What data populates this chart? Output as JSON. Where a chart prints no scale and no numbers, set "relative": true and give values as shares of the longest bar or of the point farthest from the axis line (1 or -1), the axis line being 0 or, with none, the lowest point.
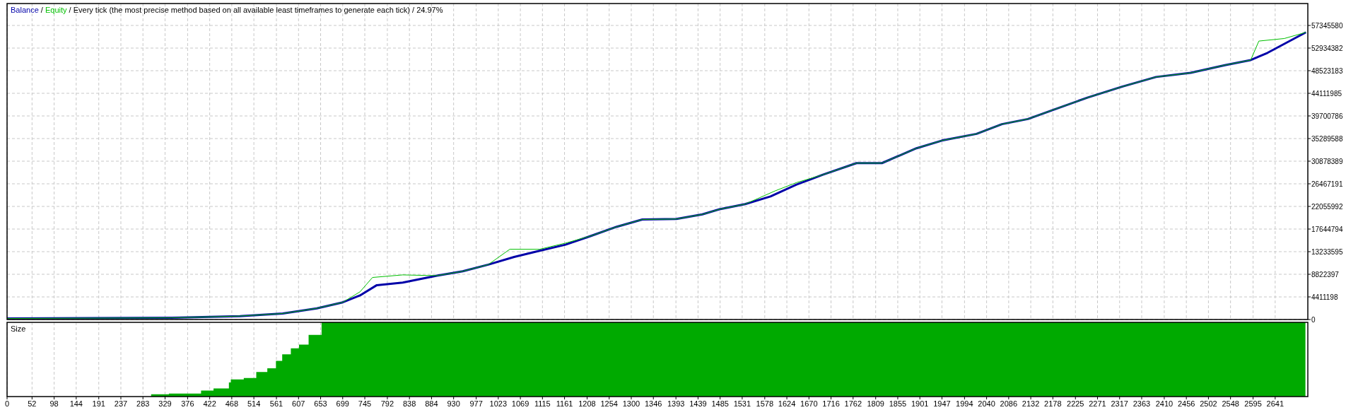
{
  "chart_data": [
    {
      "type": "line",
      "title": "Every tick (the most precise method based on all available least timeframes to generate each tick) / 24.97%",
      "annotations": [
        "/",
        "/"
      ],
      "legend": "top left",
      "grid": true,
      "tick_labels": "y",
      "xlim": [
        0,
        2709
      ],
      "ylim": [
        0,
        61620000
      ],
      "yticks": [
        0,
        4411198,
        8822397,
        13233595,
        17644794,
        22055992,
        26467191,
        30878389,
        35289588,
        39700786,
        44111985,
        48523183,
        52934382,
        57345580
      ],
      "series": [
        {
          "name": "Balance",
          "color": "#0000a8",
          "x": [
            0,
            342,
            485,
            574,
            645,
            699,
            735,
            770,
            824,
            895,
            949,
            1002,
            1056,
            1109,
            1163,
            1216,
            1270,
            1323,
            1394,
            1448,
            1484,
            1537,
            1590,
            1644,
            1698,
            1769,
            1822,
            1894,
            1947,
            2019,
            2072,
            2126,
            2179,
            2251,
            2322,
            2393,
            2465,
            2536,
            2590,
            2625,
            2705
          ],
          "values": [
            200000,
            335000,
            670000,
            1170000,
            2180000,
            3350000,
            4700000,
            6700000,
            7200000,
            8550000,
            9400000,
            10700000,
            12200000,
            13400000,
            14600000,
            16300000,
            18100000,
            19500000,
            19600000,
            20500000,
            21500000,
            22500000,
            24000000,
            26300000,
            28200000,
            30500000,
            30500000,
            33400000,
            34900000,
            36200000,
            38100000,
            39100000,
            40900000,
            43300000,
            45400000,
            47300000,
            48100000,
            49600000,
            50600000,
            52000000,
            56000000
          ]
        },
        {
          "name": "Equity",
          "color": "#00c000",
          "x": [
            0,
            342,
            485,
            574,
            645,
            699,
            735,
            761,
            824,
            895,
            949,
            1002,
            1047,
            1109,
            1163,
            1216,
            1270,
            1323,
            1394,
            1448,
            1484,
            1537,
            1600,
            1644,
            1698,
            1769,
            1822,
            1894,
            1947,
            2019,
            2072,
            2126,
            2179,
            2251,
            2322,
            2393,
            2465,
            2536,
            2590,
            2607,
            2660,
            2705
          ],
          "values": [
            200000,
            335000,
            670000,
            1170000,
            2180000,
            3350000,
            5400000,
            8200000,
            8700000,
            8550000,
            9400000,
            10700000,
            13700000,
            13700000,
            14900000,
            16300000,
            18100000,
            19500000,
            19600000,
            20500000,
            21500000,
            22500000,
            25100000,
            26700000,
            28200000,
            30500000,
            30500000,
            33400000,
            34900000,
            36200000,
            38100000,
            39100000,
            40900000,
            43300000,
            45400000,
            47300000,
            48100000,
            49600000,
            50600000,
            54300000,
            54800000,
            56000000
          ]
        }
      ]
    },
    {
      "type": "area",
      "title": "Size",
      "relative": true,
      "grid": "x",
      "tick_labels": "x",
      "xlim": [
        0,
        2709
      ],
      "xticks": [
        0,
        52,
        98,
        144,
        191,
        237,
        283,
        329,
        376,
        422,
        468,
        514,
        561,
        607,
        653,
        699,
        745,
        792,
        838,
        884,
        930,
        977,
        1023,
        1069,
        1115,
        1161,
        1208,
        1254,
        1300,
        1346,
        1393,
        1439,
        1485,
        1531,
        1578,
        1624,
        1670,
        1716,
        1762,
        1809,
        1855,
        1901,
        1947,
        1994,
        2040,
        2086,
        2132,
        2178,
        2225,
        2271,
        2317,
        2363,
        2410,
        2456,
        2502,
        2548,
        2595,
        2641
      ],
      "series": [
        {
          "color": "#00aa00",
          "x": [
            0,
            300,
            337,
            404,
            430,
            462,
            466,
            493,
            519,
            542,
            560,
            573,
            591,
            608,
            628,
            655,
            2704
          ],
          "values": [
            0,
            0.03,
            0.04,
            0.08,
            0.11,
            0.19,
            0.23,
            0.25,
            0.33,
            0.38,
            0.48,
            0.57,
            0.65,
            0.7,
            0.83,
            1,
            1
          ]
        }
      ]
    }
  ]
}
